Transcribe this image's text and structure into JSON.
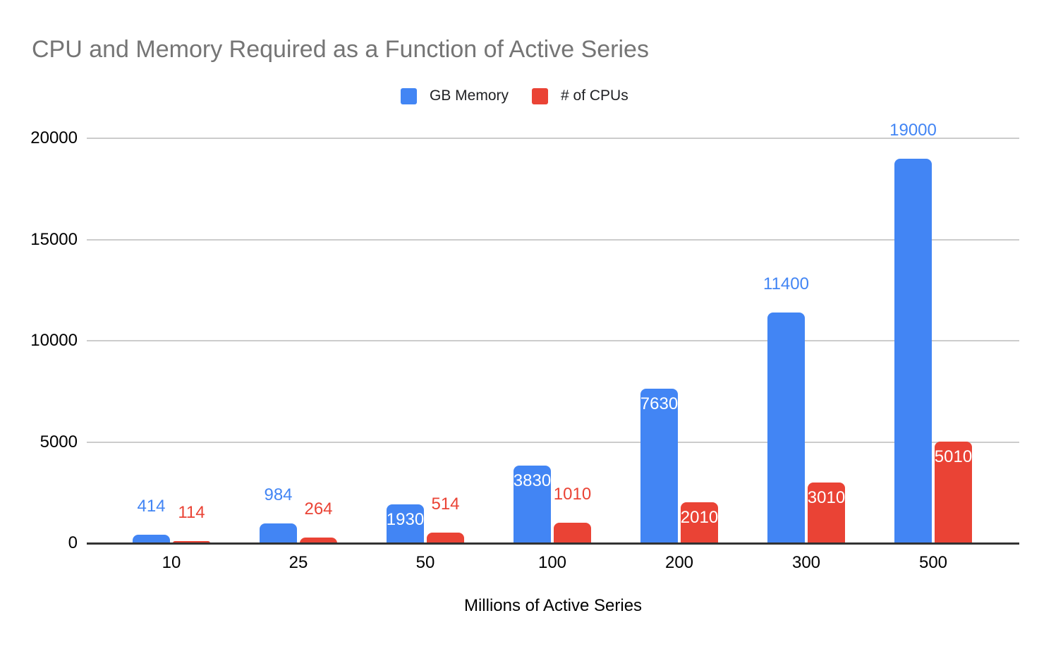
{
  "chart_data": {
    "type": "bar",
    "title": "CPU and Memory Required as a Function of Active Series",
    "xlabel": "Millions of Active Series",
    "ylabel": "",
    "categories": [
      "10",
      "25",
      "50",
      "100",
      "200",
      "300",
      "500"
    ],
    "series": [
      {
        "name": "GB Memory",
        "color": "#4285F4",
        "values": [
          414,
          984,
          1930,
          3830,
          7630,
          11400,
          19000
        ],
        "label_inside": [
          false,
          false,
          true,
          true,
          true,
          false,
          false
        ]
      },
      {
        "name": "# of CPUs",
        "color": "#EA4335",
        "values": [
          114,
          264,
          514,
          1010,
          2010,
          3010,
          5010
        ],
        "label_inside": [
          false,
          false,
          false,
          false,
          true,
          true,
          true
        ]
      }
    ],
    "ylim": [
      0,
      20000
    ],
    "y_ticks": [
      0,
      5000,
      10000,
      15000,
      20000
    ],
    "grid": true,
    "legend_position": "top",
    "inside_label_color": "#FFFFFF"
  },
  "colors": {
    "background": "#FFFFFF",
    "title_text": "#757575",
    "axis_text": "#000000",
    "legend_text": "#202124",
    "gridline": "#CCCCCC",
    "axis_line": "#333333"
  }
}
